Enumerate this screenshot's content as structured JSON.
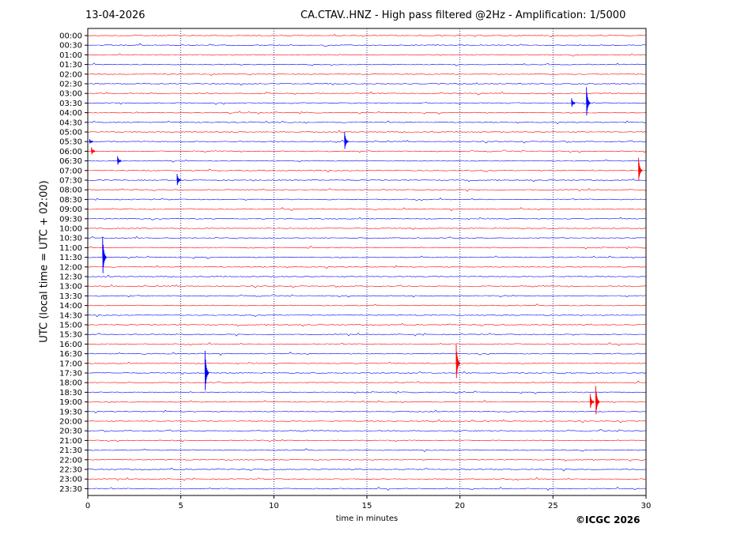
{
  "header": {
    "date": "13-04-2026",
    "title": "CA.CTAV..HNZ - High pass filtered @2Hz - Amplification: 1/5000"
  },
  "footer": {
    "copyright": "©ICGC 2026"
  },
  "chart_data": {
    "type": "line",
    "subtype": "helicorder",
    "xlabel": "time in minutes",
    "ylabel": "UTC (local time = UTC + 02:00)",
    "xlim": [
      0,
      30
    ],
    "x_ticks": [
      0,
      5,
      10,
      15,
      20,
      25,
      30
    ],
    "vertical_grid": [
      5,
      10,
      15,
      20,
      25
    ],
    "grid": true,
    "colors": {
      "row_even": "#ff0000",
      "row_odd": "#0000ff",
      "grid": "#000080"
    },
    "rows": [
      "00:00",
      "00:30",
      "01:00",
      "01:30",
      "02:00",
      "02:30",
      "03:00",
      "03:30",
      "04:00",
      "04:30",
      "05:00",
      "05:30",
      "06:00",
      "06:30",
      "07:00",
      "07:30",
      "08:00",
      "08:30",
      "09:00",
      "09:30",
      "10:00",
      "10:30",
      "11:00",
      "11:30",
      "12:00",
      "12:30",
      "13:00",
      "13:30",
      "14:00",
      "14:30",
      "15:00",
      "15:30",
      "16:00",
      "16:30",
      "17:00",
      "17:30",
      "18:00",
      "18:30",
      "19:00",
      "19:30",
      "20:00",
      "20:30",
      "21:00",
      "21:30",
      "22:00",
      "22:30",
      "23:00",
      "23:30"
    ],
    "events": [
      {
        "row": "03:30",
        "minute": 26.0,
        "amplitude": 6
      },
      {
        "row": "03:30",
        "minute": 26.8,
        "amplitude": 20
      },
      {
        "row": "05:30",
        "minute": 13.8,
        "amplitude": 12
      },
      {
        "row": "05:30",
        "minute": 0.1,
        "amplitude": 3
      },
      {
        "row": "06:00",
        "minute": 0.2,
        "amplitude": 5
      },
      {
        "row": "06:30",
        "minute": 1.6,
        "amplitude": 6
      },
      {
        "row": "07:00",
        "minute": 29.6,
        "amplitude": 16
      },
      {
        "row": "07:30",
        "minute": 4.8,
        "amplitude": 8
      },
      {
        "row": "11:30",
        "minute": 0.8,
        "amplitude": 26
      },
      {
        "row": "17:00",
        "minute": 19.8,
        "amplitude": 24
      },
      {
        "row": "17:30",
        "minute": 6.3,
        "amplitude": 28
      },
      {
        "row": "19:00",
        "minute": 27.3,
        "amplitude": 20
      },
      {
        "row": "19:00",
        "minute": 27.0,
        "amplitude": 10
      }
    ]
  }
}
